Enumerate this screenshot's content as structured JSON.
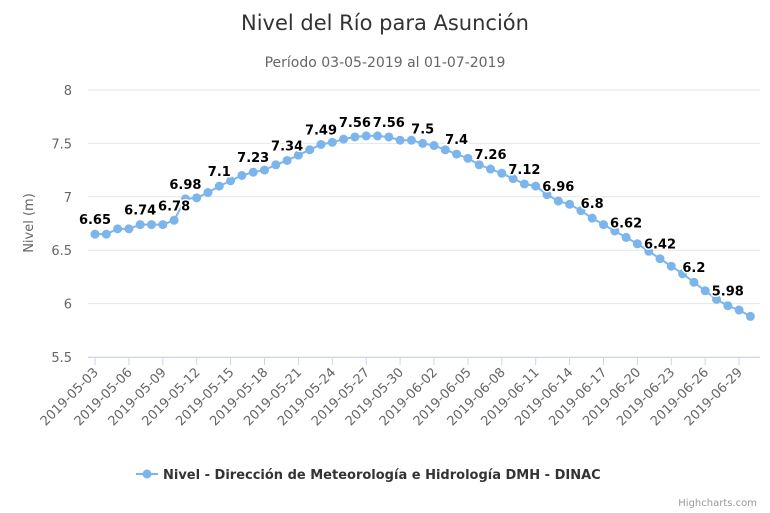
{
  "chart_data": {
    "type": "line",
    "title": "Nivel del Río para Asunción",
    "subtitle": "Período 03-05-2019 al 01-07-2019",
    "ylabel": "Nivel (m)",
    "xlabel": "",
    "ylim": [
      5.5,
      8
    ],
    "yticks": [
      "5.5",
      "6",
      "6.5",
      "7",
      "7.5",
      "8"
    ],
    "grid": true,
    "legend_position": "bottom",
    "series_color": "#7cb5ec",
    "x": [
      "2019-05-03",
      "2019-05-04",
      "2019-05-05",
      "2019-05-06",
      "2019-05-07",
      "2019-05-08",
      "2019-05-09",
      "2019-05-10",
      "2019-05-11",
      "2019-05-12",
      "2019-05-13",
      "2019-05-14",
      "2019-05-15",
      "2019-05-16",
      "2019-05-17",
      "2019-05-18",
      "2019-05-19",
      "2019-05-20",
      "2019-05-21",
      "2019-05-22",
      "2019-05-23",
      "2019-05-24",
      "2019-05-25",
      "2019-05-26",
      "2019-05-27",
      "2019-05-28",
      "2019-05-29",
      "2019-05-30",
      "2019-05-31",
      "2019-06-01",
      "2019-06-02",
      "2019-06-03",
      "2019-06-04",
      "2019-06-05",
      "2019-06-06",
      "2019-06-07",
      "2019-06-08",
      "2019-06-09",
      "2019-06-10",
      "2019-06-11",
      "2019-06-12",
      "2019-06-13",
      "2019-06-14",
      "2019-06-15",
      "2019-06-16",
      "2019-06-17",
      "2019-06-18",
      "2019-06-19",
      "2019-06-20",
      "2019-06-21",
      "2019-06-22",
      "2019-06-23",
      "2019-06-24",
      "2019-06-25",
      "2019-06-26",
      "2019-06-27",
      "2019-06-28",
      "2019-06-29",
      "2019-06-30"
    ],
    "series": [
      {
        "name": "Nivel - Dirección de Meteorología e Hidrología DMH - DINAC",
        "values": [
          6.65,
          6.65,
          6.7,
          6.7,
          6.74,
          6.74,
          6.74,
          6.78,
          6.98,
          6.99,
          7.04,
          7.1,
          7.15,
          7.2,
          7.23,
          7.25,
          7.3,
          7.34,
          7.39,
          7.44,
          7.49,
          7.51,
          7.54,
          7.56,
          7.57,
          7.57,
          7.56,
          7.53,
          7.53,
          7.5,
          7.48,
          7.44,
          7.4,
          7.36,
          7.3,
          7.26,
          7.22,
          7.17,
          7.12,
          7.1,
          7.02,
          6.96,
          6.93,
          6.87,
          6.8,
          6.74,
          6.68,
          6.62,
          6.56,
          6.49,
          6.42,
          6.35,
          6.28,
          6.2,
          6.12,
          6.04,
          5.98,
          5.94,
          5.88
        ]
      }
    ],
    "data_labels": [
      {
        "index": 0,
        "text": "6.65"
      },
      {
        "index": 4,
        "text": "6.74"
      },
      {
        "index": 7,
        "text": "6.78"
      },
      {
        "index": 8,
        "text": "6.98"
      },
      {
        "index": 11,
        "text": "7.1"
      },
      {
        "index": 14,
        "text": "7.23"
      },
      {
        "index": 17,
        "text": "7.34"
      },
      {
        "index": 20,
        "text": "7.49"
      },
      {
        "index": 23,
        "text": "7.56"
      },
      {
        "index": 26,
        "text": "7.56"
      },
      {
        "index": 29,
        "text": "7.5"
      },
      {
        "index": 32,
        "text": "7.4"
      },
      {
        "index": 35,
        "text": "7.26"
      },
      {
        "index": 38,
        "text": "7.12"
      },
      {
        "index": 41,
        "text": "6.96"
      },
      {
        "index": 44,
        "text": "6.8"
      },
      {
        "index": 47,
        "text": "6.62"
      },
      {
        "index": 50,
        "text": "6.42"
      },
      {
        "index": 53,
        "text": "6.2"
      },
      {
        "index": 56,
        "text": "5.98"
      }
    ],
    "xtick_labels": [
      "2019-05-03",
      "2019-05-06",
      "2019-05-09",
      "2019-05-12",
      "2019-05-15",
      "2019-05-18",
      "2019-05-21",
      "2019-05-24",
      "2019-05-27",
      "2019-05-30",
      "2019-06-02",
      "2019-06-05",
      "2019-06-08",
      "2019-06-11",
      "2019-06-14",
      "2019-06-17",
      "2019-06-20",
      "2019-06-23",
      "2019-06-26",
      "2019-06-29"
    ]
  },
  "credit": "Highcharts.com"
}
